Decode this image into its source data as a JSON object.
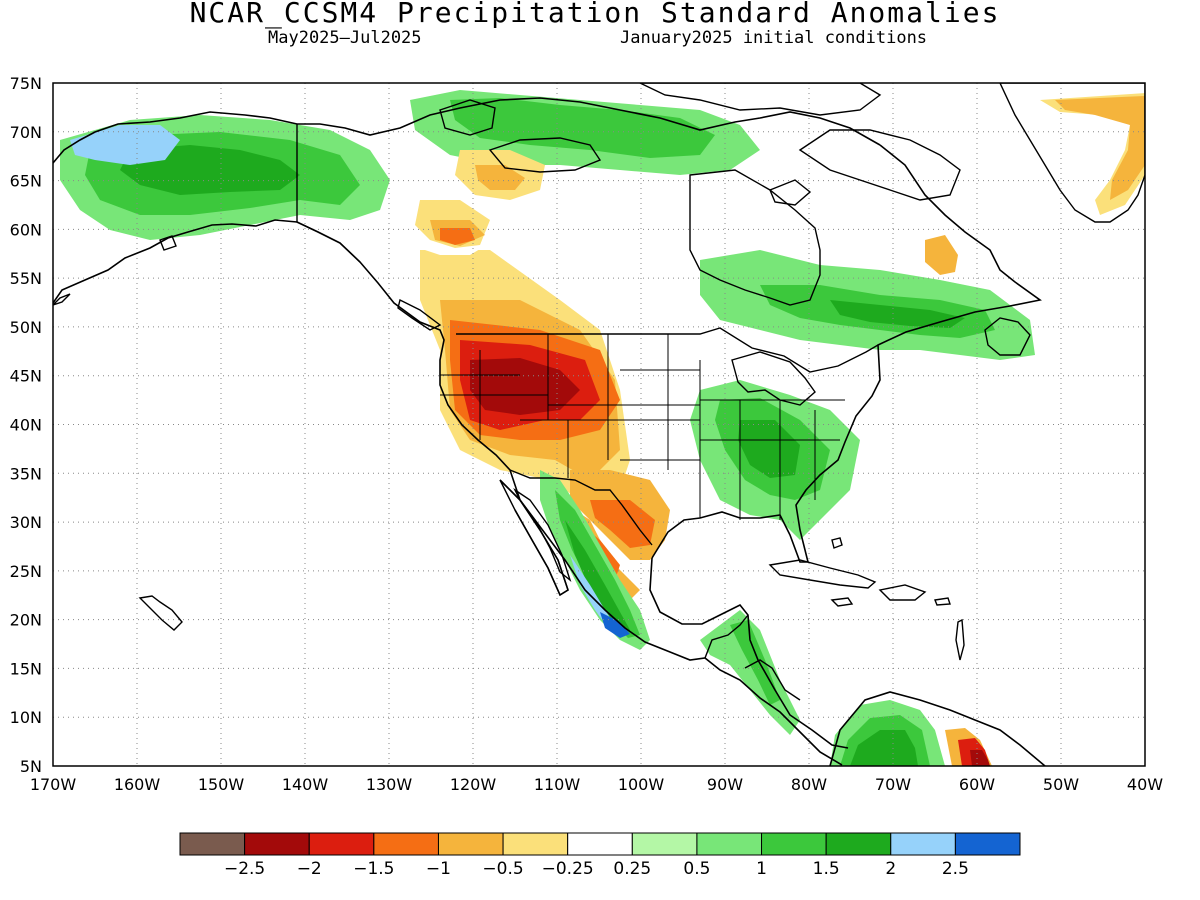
{
  "header": {
    "title": "NCAR_CCSM4 Precipitation Standard Anomalies",
    "period": "May2025–Jul2025",
    "init": "January2025 initial conditions"
  },
  "map": {
    "lat_range": [
      5,
      75
    ],
    "lon_range": [
      -170,
      -40
    ],
    "lat_ticks": [
      "5N",
      "10N",
      "15N",
      "20N",
      "25N",
      "30N",
      "35N",
      "40N",
      "45N",
      "50N",
      "55N",
      "60N",
      "65N",
      "70N",
      "75N"
    ],
    "lon_ticks": [
      "170W",
      "160W",
      "150W",
      "140W",
      "130W",
      "120W",
      "110W",
      "100W",
      "90W",
      "80W",
      "70W",
      "60W",
      "50W",
      "40W"
    ],
    "gridlines": "dotted"
  },
  "colorbar": {
    "colors": [
      "#7a5b4e",
      "#a30a0a",
      "#dc1e0f",
      "#f56e14",
      "#f5b43c",
      "#fbe07a",
      "#ffffff",
      "#b4f7a6",
      "#78e678",
      "#3cc83c",
      "#1eaa1e",
      "#96d2fa",
      "#1464d2"
    ],
    "labels": [
      "−2.5",
      "−2",
      "−1.5",
      "−1",
      "−0.5",
      "−0.25",
      "0.25",
      "0.5",
      "1",
      "1.5",
      "2",
      "2.5"
    ]
  },
  "features": [
    {
      "name": "alaska",
      "category": "land"
    },
    {
      "name": "canada-west",
      "category": "land"
    },
    {
      "name": "canada-east",
      "category": "land"
    },
    {
      "name": "conus",
      "category": "land"
    },
    {
      "name": "mexico",
      "category": "land"
    },
    {
      "name": "central-america",
      "category": "land"
    },
    {
      "name": "greenland",
      "category": "land"
    },
    {
      "name": "south-america",
      "category": "land"
    },
    {
      "name": "hudson-bay",
      "category": "water"
    },
    {
      "name": "great-lakes",
      "category": "water"
    },
    {
      "name": "gulf-of-california",
      "category": "water"
    },
    {
      "name": "cuba",
      "category": "island"
    },
    {
      "name": "hispaniola",
      "category": "island"
    },
    {
      "name": "jamaica",
      "category": "island"
    },
    {
      "name": "puerto-rico",
      "category": "island"
    },
    {
      "name": "hawaii",
      "category": "island"
    },
    {
      "name": "bahamas",
      "category": "island"
    },
    {
      "name": "lesser-antilles",
      "category": "island"
    },
    {
      "name": "aleutians",
      "category": "island"
    },
    {
      "name": "newfoundland",
      "category": "island"
    },
    {
      "name": "vancouver-island",
      "category": "island"
    },
    {
      "name": "baffin-island",
      "category": "island"
    },
    {
      "name": "victoria-island",
      "category": "island"
    },
    {
      "name": "banks-island",
      "category": "island"
    },
    {
      "name": "ellesmere-island",
      "category": "island"
    },
    {
      "name": "southampton-island",
      "category": "island"
    },
    {
      "name": "kodiak",
      "category": "island"
    }
  ],
  "shading": [
    {
      "name": "nw-us-dry",
      "class": 6
    },
    {
      "name": "nw-us-dry",
      "class": 5
    },
    {
      "name": "nw-us-dry",
      "class": 4
    },
    {
      "name": "nw-us-dry",
      "class": 3
    },
    {
      "name": "nw-us-dry",
      "class": 2
    },
    {
      "name": "nw-us-dry",
      "class": 1
    },
    {
      "name": "bc-dry",
      "class": 6
    },
    {
      "name": "bc-dry",
      "class": 5
    },
    {
      "name": "bc-dry",
      "class": 4
    },
    {
      "name": "bc-dry",
      "class": 3
    },
    {
      "name": "texas-dry",
      "class": 4
    },
    {
      "name": "texas-dry",
      "class": 3
    },
    {
      "name": "mexico-dry",
      "class": 4
    },
    {
      "name": "mexico-dry",
      "class": 3
    },
    {
      "name": "alaska-wet",
      "class": 8
    },
    {
      "name": "alaska-wet",
      "class": 9
    },
    {
      "name": "alaska-wet",
      "class": 10
    },
    {
      "name": "east-us-wet",
      "class": 8
    },
    {
      "name": "east-us-wet",
      "class": 9
    },
    {
      "name": "east-us-wet",
      "class": 10
    },
    {
      "name": "east-canada-wet",
      "class": 8
    },
    {
      "name": "east-canada-wet",
      "class": 9
    },
    {
      "name": "east-canada-wet",
      "class": 10
    },
    {
      "name": "arctic-wet",
      "class": 8
    },
    {
      "name": "arctic-wet",
      "class": 9
    },
    {
      "name": "mexico-west-wet",
      "class": 8
    },
    {
      "name": "mexico-west-wet",
      "class": 9
    },
    {
      "name": "mexico-west-wet",
      "class": 10
    },
    {
      "name": "mexico-west-wet",
      "class": 11
    },
    {
      "name": "mexico-west-wet",
      "class": 12
    },
    {
      "name": "central-america-wet",
      "class": 8
    },
    {
      "name": "central-america-wet",
      "class": 9
    },
    {
      "name": "south-america-wet",
      "class": 8
    },
    {
      "name": "south-america-wet",
      "class": 9
    },
    {
      "name": "south-america-wet",
      "class": 10
    },
    {
      "name": "venezuela-dry",
      "class": 4
    },
    {
      "name": "venezuela-dry",
      "class": 2
    },
    {
      "name": "venezuela-dry",
      "class": 1
    },
    {
      "name": "greenland-dry",
      "class": 5
    },
    {
      "name": "greenland-dry",
      "class": 4
    },
    {
      "name": "yukon-dry",
      "class": 5
    },
    {
      "name": "yukon-dry",
      "class": 4
    },
    {
      "name": "labrador-dry",
      "class": 4
    },
    {
      "name": "alaska-north-wet",
      "class": 11
    }
  ],
  "borders": [
    {
      "name": "us-canada",
      "category": "country"
    },
    {
      "name": "alaska-canada",
      "category": "country"
    },
    {
      "name": "us-mexico",
      "category": "country"
    },
    {
      "name": "mexico-guatemala",
      "category": "country"
    },
    {
      "name": "central-america",
      "category": "country"
    },
    {
      "name": "us-states",
      "category": "state"
    }
  ]
}
